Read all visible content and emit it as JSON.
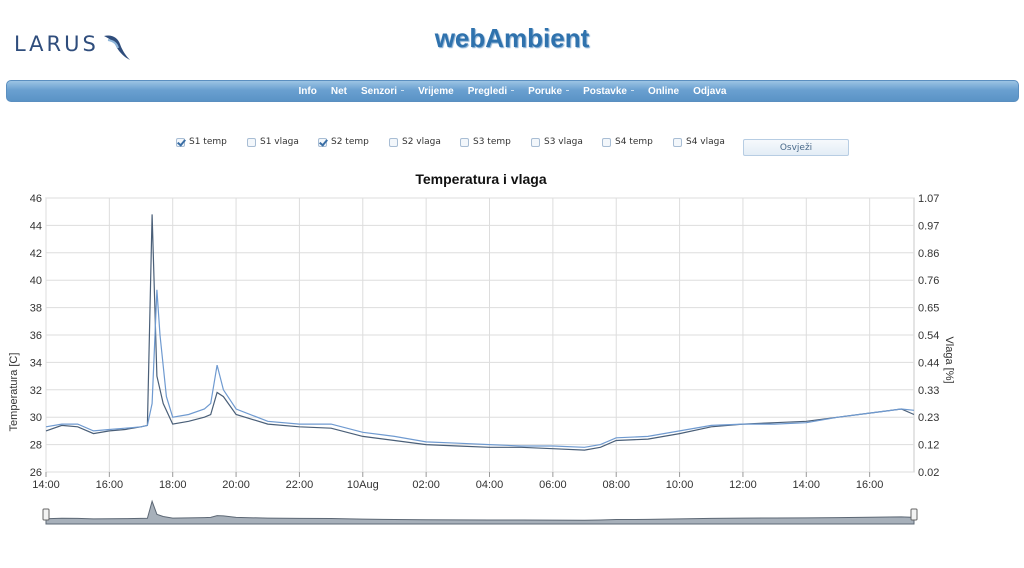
{
  "header": {
    "logo_text": "LARUS",
    "app_title": "webAmbient"
  },
  "nav": {
    "items": [
      "Info",
      "Net",
      "Senzori",
      "Vrijeme",
      "Pregledi",
      "Poruke",
      "Postavke",
      "Online",
      "Odjava"
    ]
  },
  "sensors": {
    "items": [
      {
        "label": "S1 temp",
        "checked": true
      },
      {
        "label": "S1 vlaga",
        "checked": false
      },
      {
        "label": "S2 temp",
        "checked": true
      },
      {
        "label": "S2 vlaga",
        "checked": false
      },
      {
        "label": "S3 temp",
        "checked": false
      },
      {
        "label": "S3 vlaga",
        "checked": false
      },
      {
        "label": "S4 temp",
        "checked": false
      },
      {
        "label": "S4 vlaga",
        "checked": false
      }
    ],
    "refresh_label": "Osvježi"
  },
  "colors": {
    "accent": "#2f72ad",
    "series1": "#4a5f78",
    "series2": "#6f9ad0",
    "grid": "#dddddd",
    "navigator_fill": "#8a96a3"
  },
  "chart_data": {
    "type": "line",
    "title": "Temperatura i vlaga",
    "ylabel": "Temperatura [C]",
    "y2label": "Vlaga [%]",
    "ylim": [
      26,
      46
    ],
    "y2lim": [
      0.02,
      1.07
    ],
    "yticks": [
      26,
      28,
      30,
      32,
      34,
      36,
      38,
      40,
      42,
      44,
      46
    ],
    "y2ticks": [
      "0.02",
      "0.12",
      "0.23",
      "0.33",
      "0.44",
      "0.54",
      "0.65",
      "0.76",
      "0.86",
      "0.97",
      "1.07"
    ],
    "xlim_hours": [
      14,
      41.4
    ],
    "xticks": [
      "14:00",
      "16:00",
      "18:00",
      "20:00",
      "22:00",
      "10Aug",
      "02:00",
      "04:00",
      "06:00",
      "08:00",
      "10:00",
      "12:00",
      "14:00",
      "16:00"
    ],
    "grid": true,
    "series": [
      {
        "name": "S1 temp",
        "x": [
          14,
          14.5,
          15,
          15.5,
          16,
          16.5,
          17,
          17.2,
          17.35,
          17.5,
          17.7,
          18,
          18.5,
          19,
          19.2,
          19.4,
          19.6,
          20,
          21,
          22,
          23,
          24,
          25,
          26,
          27,
          28,
          29,
          30,
          31,
          31.5,
          32,
          33,
          34,
          35,
          36,
          37,
          38,
          39,
          40,
          41,
          41.4
        ],
        "y": [
          29.0,
          29.4,
          29.3,
          28.8,
          29.0,
          29.1,
          29.3,
          29.4,
          44.8,
          33.0,
          31.0,
          29.5,
          29.7,
          30.0,
          30.2,
          31.8,
          31.5,
          30.2,
          29.5,
          29.3,
          29.2,
          28.6,
          28.3,
          28.0,
          27.9,
          27.8,
          27.8,
          27.7,
          27.6,
          27.8,
          28.3,
          28.4,
          28.8,
          29.3,
          29.5,
          29.6,
          29.7,
          30.0,
          30.3,
          30.6,
          30.2
        ]
      },
      {
        "name": "S2 temp",
        "x": [
          14,
          14.5,
          15,
          15.5,
          16,
          16.5,
          17,
          17.2,
          17.35,
          17.5,
          17.6,
          17.8,
          18,
          18.5,
          19,
          19.2,
          19.4,
          19.6,
          20,
          21,
          22,
          23,
          24,
          25,
          26,
          27,
          28,
          29,
          30,
          31,
          31.5,
          32,
          33,
          34,
          35,
          36,
          37,
          38,
          39,
          40,
          41,
          41.4
        ],
        "y": [
          29.3,
          29.5,
          29.5,
          29.0,
          29.1,
          29.2,
          29.3,
          29.4,
          31.0,
          39.3,
          36.0,
          31.5,
          30.0,
          30.2,
          30.6,
          31.0,
          33.8,
          32.0,
          30.6,
          29.7,
          29.5,
          29.5,
          28.9,
          28.6,
          28.2,
          28.1,
          28.0,
          27.9,
          27.9,
          27.8,
          28.0,
          28.5,
          28.6,
          29.0,
          29.4,
          29.5,
          29.5,
          29.6,
          30.0,
          30.3,
          30.6,
          30.5
        ]
      }
    ]
  }
}
